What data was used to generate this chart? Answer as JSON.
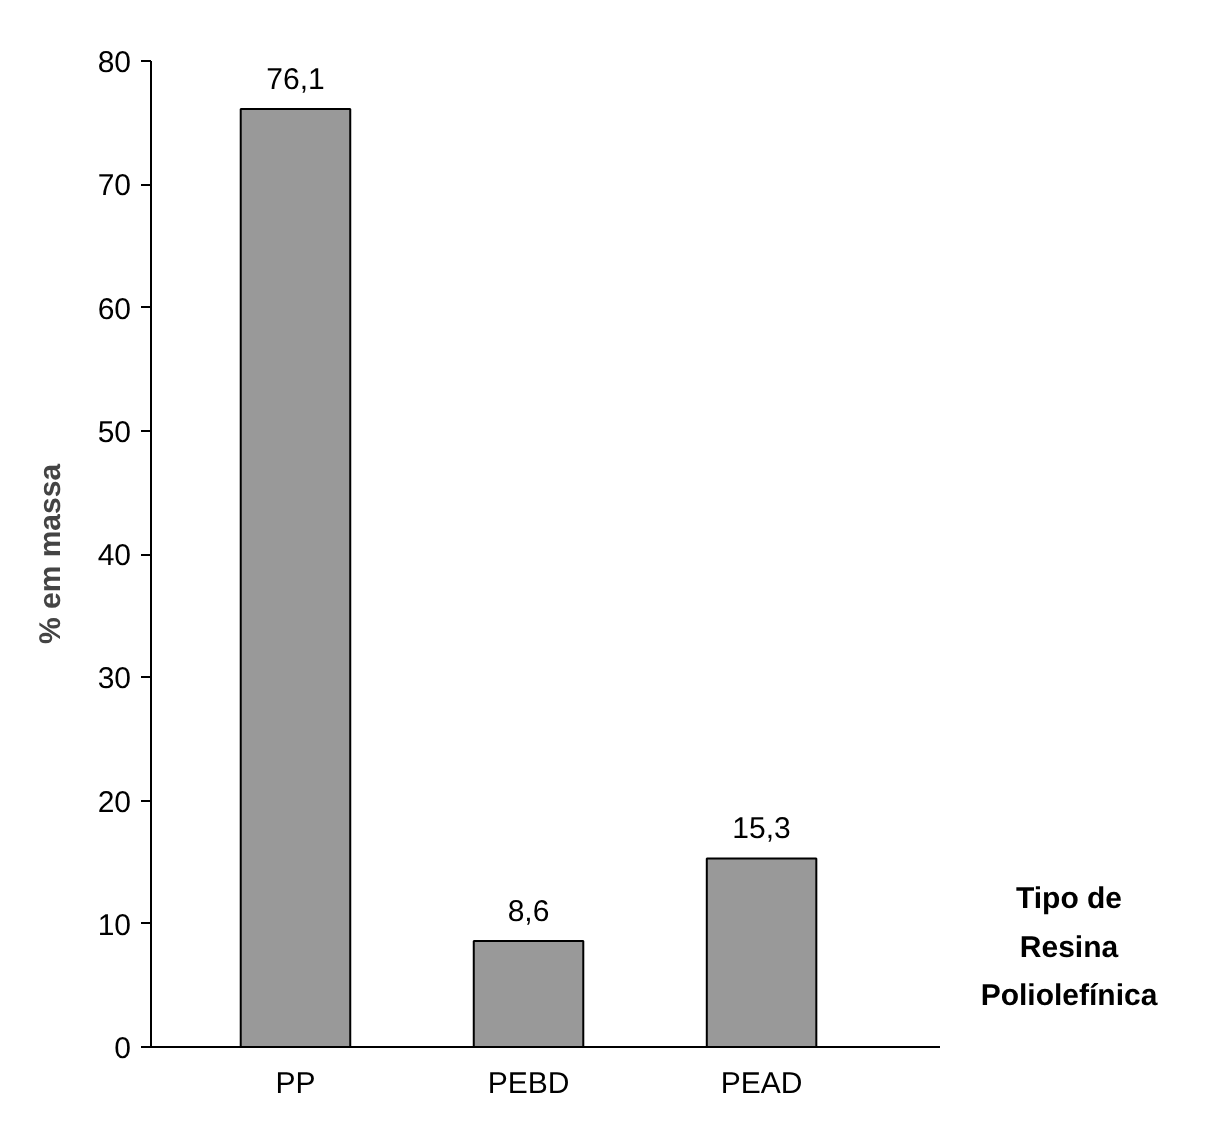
{
  "chart_data": {
    "type": "bar",
    "ylabel": "% em massa",
    "xlabel": "Tipo de Resina Poliolefínica",
    "categories": [
      "PP",
      "PEBD",
      "PEAD"
    ],
    "values": [
      76.1,
      8.6,
      15.3
    ],
    "value_labels": [
      "76,1",
      "8,6",
      "15,3"
    ],
    "color": "#999999",
    "ylim": [
      0,
      80
    ],
    "yticks": [
      0,
      10,
      20,
      30,
      40,
      50,
      60,
      70,
      80
    ],
    "grid": false
  }
}
